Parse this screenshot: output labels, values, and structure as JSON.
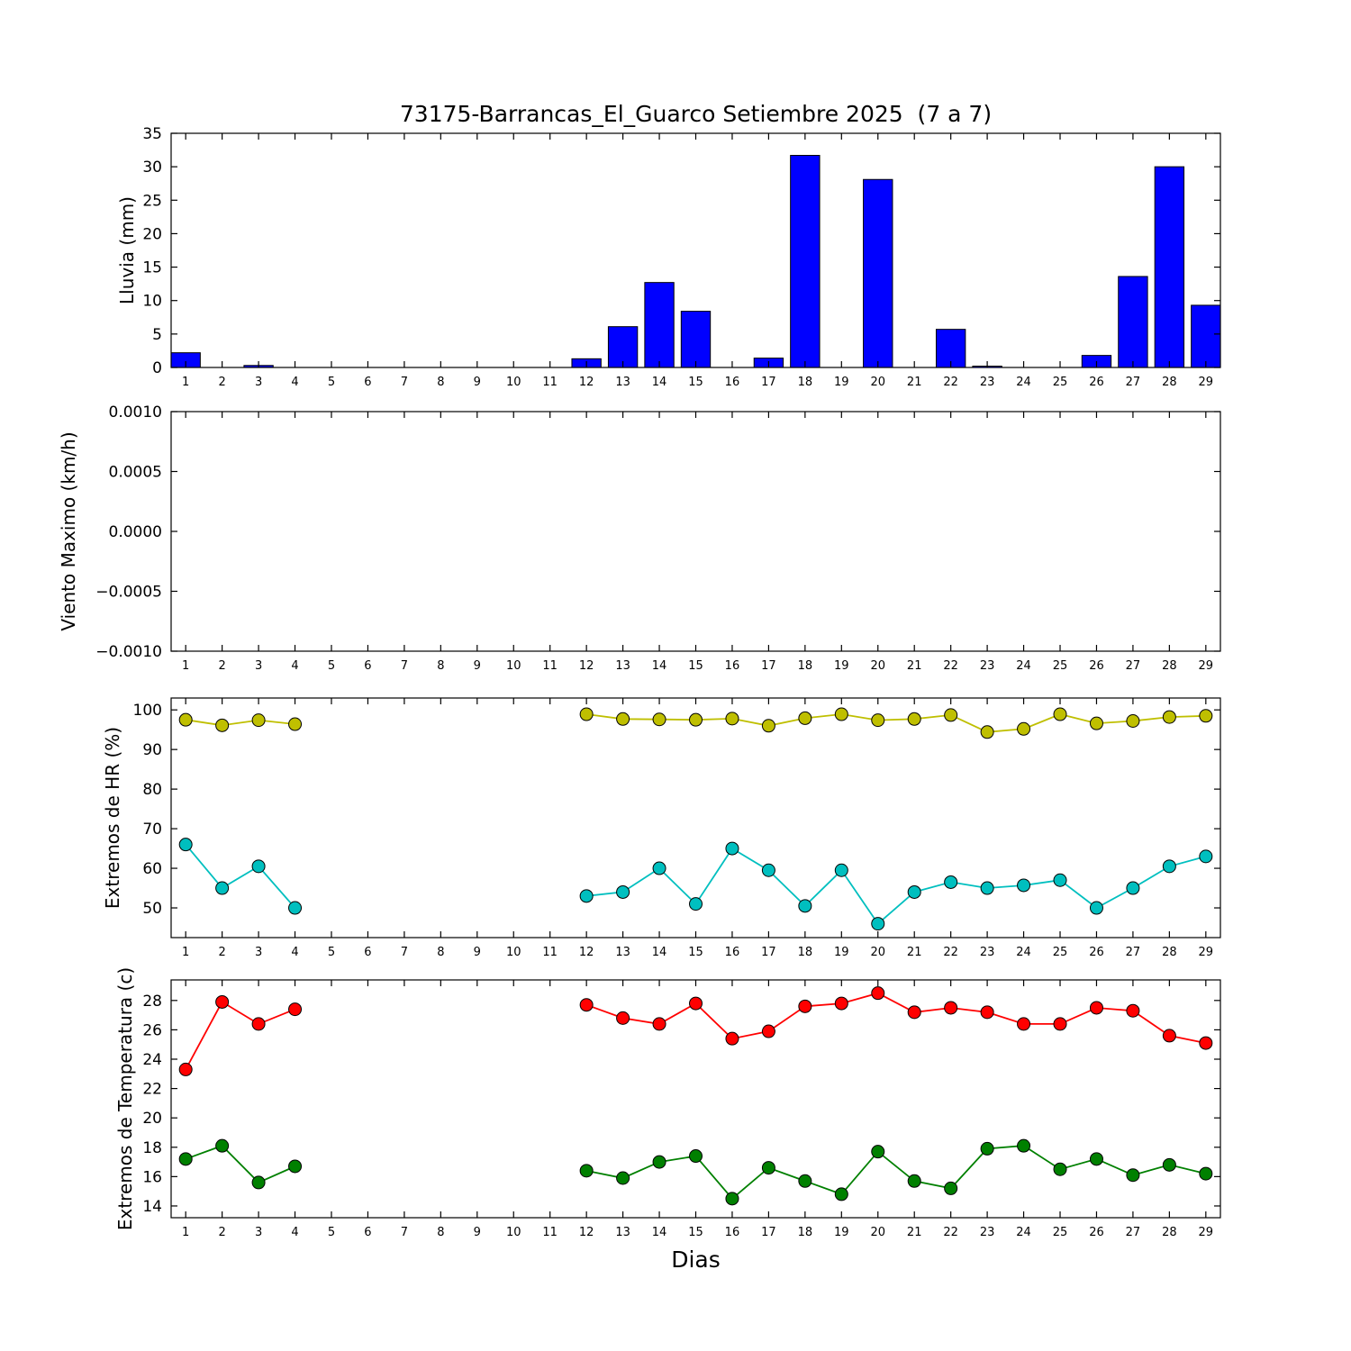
{
  "title": "73175-Barrancas_El_Guarco Setiembre 2025  (7 a 7)",
  "xlabel": "Dias",
  "days": [
    1,
    2,
    3,
    4,
    5,
    6,
    7,
    8,
    9,
    10,
    11,
    12,
    13,
    14,
    15,
    16,
    17,
    18,
    19,
    20,
    21,
    22,
    23,
    24,
    25,
    26,
    27,
    28,
    29
  ],
  "chart_data": [
    {
      "id": "lluvia",
      "type": "bar",
      "ylabel": "Lluvia (mm)",
      "xlim": [
        0.6,
        29.4
      ],
      "ylim": [
        0,
        35
      ],
      "yticks": [
        0,
        5,
        10,
        15,
        20,
        25,
        30,
        35
      ],
      "bar_color": "#0000ff",
      "values": [
        2.2,
        0,
        0.3,
        0,
        0,
        0,
        0,
        0,
        0,
        0,
        0,
        1.3,
        6.1,
        12.7,
        8.4,
        0,
        1.4,
        31.7,
        0,
        28.1,
        0,
        5.7,
        0.2,
        0,
        0,
        1.8,
        13.6,
        30.0,
        9.3
      ]
    },
    {
      "id": "viento",
      "type": "line",
      "ylabel": "Viento Maximo (km/h)",
      "xlim": [
        0.6,
        29.4
      ],
      "ylim": [
        -0.001,
        0.001
      ],
      "yticks": [
        -0.001,
        -0.0005,
        0,
        0.0005,
        0.001
      ],
      "ytick_labels": [
        "−0.0010",
        "−0.0005",
        "0.0000",
        "0.0005",
        "0.0010"
      ],
      "series": []
    },
    {
      "id": "hr",
      "type": "line",
      "ylabel": "Extremos de HR (%)",
      "xlim": [
        0.6,
        29.4
      ],
      "ylim": [
        42.5,
        103
      ],
      "yticks": [
        50,
        60,
        70,
        80,
        90,
        100
      ],
      "series": [
        {
          "name": "hr-maxima",
          "color": "#bfbf00",
          "values": [
            97.5,
            96.1,
            97.4,
            96.4,
            null,
            null,
            null,
            null,
            null,
            null,
            null,
            98.9,
            97.7,
            97.6,
            97.5,
            97.8,
            96.0,
            97.9,
            98.9,
            97.4,
            97.7,
            98.7,
            94.4,
            95.2,
            98.9,
            96.6,
            97.2,
            98.2,
            98.5
          ]
        },
        {
          "name": "hr-minima",
          "color": "#00bfbf",
          "values": [
            66,
            55,
            60.5,
            50,
            null,
            null,
            null,
            null,
            null,
            null,
            null,
            53,
            54,
            60,
            51,
            65,
            59.5,
            50.5,
            59.5,
            46,
            54,
            56.5,
            55,
            55.7,
            57,
            50,
            55,
            60.5,
            63
          ]
        }
      ]
    },
    {
      "id": "temp",
      "type": "line",
      "ylabel": "Extremos de Temperatura (c)",
      "xlim": [
        0.6,
        29.4
      ],
      "ylim": [
        13.2,
        29.4
      ],
      "yticks": [
        14,
        16,
        18,
        20,
        22,
        24,
        26,
        28
      ],
      "series": [
        {
          "name": "temperatura-maxima",
          "color": "#ff0000",
          "values": [
            23.3,
            27.9,
            26.4,
            27.4,
            null,
            null,
            null,
            null,
            null,
            null,
            null,
            27.7,
            26.8,
            26.4,
            27.8,
            25.4,
            25.9,
            27.6,
            27.8,
            28.5,
            27.2,
            27.5,
            27.2,
            26.4,
            26.4,
            27.5,
            27.3,
            25.6,
            25.1
          ]
        },
        {
          "name": "temperatura-minima",
          "color": "#008000",
          "values": [
            17.2,
            18.1,
            15.6,
            16.7,
            null,
            null,
            null,
            null,
            null,
            null,
            null,
            16.4,
            15.9,
            17.0,
            17.4,
            14.5,
            16.6,
            15.7,
            14.8,
            17.7,
            15.7,
            15.2,
            17.9,
            18.1,
            16.5,
            17.2,
            16.1,
            16.8,
            16.2
          ]
        }
      ]
    }
  ]
}
